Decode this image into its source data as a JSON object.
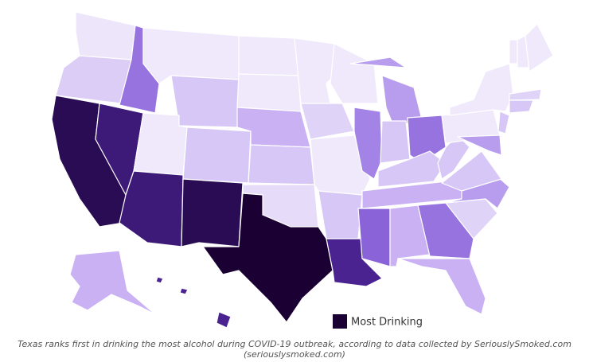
{
  "legend": {
    "label": "Most Drinking"
  },
  "caption": "Texas ranks first in drinking the most alcohol during COVID-19 outbreak, according to data collected by SeriouslySmoked.com (seriouslysmoked.com)"
}
